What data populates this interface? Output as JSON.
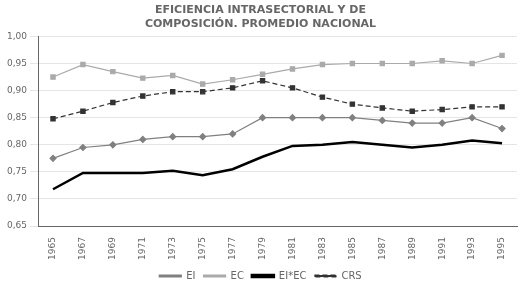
{
  "chart_data": {
    "type": "line",
    "title": "EFICIENCIA INTRASECTORIAL Y DE\nCOMPOSICIÓN. PROMEDIO NACIONAL",
    "x": [
      1965,
      1967,
      1969,
      1971,
      1973,
      1975,
      1977,
      1979,
      1981,
      1983,
      1985,
      1987,
      1989,
      1991,
      1993,
      1995
    ],
    "series": [
      {
        "name": "EI",
        "color": "#808080",
        "marker": "diamond",
        "line_style": "solid",
        "values": [
          0.775,
          0.795,
          0.8,
          0.81,
          0.815,
          0.815,
          0.82,
          0.85,
          0.85,
          0.85,
          0.85,
          0.845,
          0.84,
          0.84,
          0.85,
          0.83
        ]
      },
      {
        "name": "EC",
        "color": "#aaaaaa",
        "marker": "square",
        "line_style": "solid",
        "values": [
          0.925,
          0.948,
          0.935,
          0.923,
          0.928,
          0.912,
          0.92,
          0.93,
          0.94,
          0.948,
          0.95,
          0.95,
          0.95,
          0.955,
          0.95,
          0.965
        ]
      },
      {
        "name": "EI*EC",
        "color": "#000000",
        "marker": "none",
        "line_style": "solid",
        "values": [
          0.718,
          0.748,
          0.748,
          0.748,
          0.752,
          0.744,
          0.755,
          0.778,
          0.798,
          0.8,
          0.805,
          0.8,
          0.795,
          0.8,
          0.808,
          0.803
        ]
      },
      {
        "name": "CRS",
        "color": "#333333",
        "marker": "square",
        "line_style": "dashed",
        "values": [
          0.848,
          0.862,
          0.878,
          0.89,
          0.898,
          0.898,
          0.905,
          0.918,
          0.905,
          0.888,
          0.875,
          0.868,
          0.862,
          0.865,
          0.87,
          0.87
        ]
      }
    ],
    "xlim": [
      1964,
      1996
    ],
    "xticks": [
      1965,
      1967,
      1969,
      1971,
      1973,
      1975,
      1977,
      1979,
      1981,
      1983,
      1985,
      1987,
      1989,
      1991,
      1993,
      1995
    ],
    "ylim": [
      0.65,
      1.0
    ],
    "yticks": [
      {
        "value": 0.65,
        "label": "0,65"
      },
      {
        "value": 0.7,
        "label": "0,70"
      },
      {
        "value": 0.75,
        "label": "0,75"
      },
      {
        "value": 0.8,
        "label": "0,80"
      },
      {
        "value": 0.85,
        "label": "0,85"
      },
      {
        "value": 0.9,
        "label": "0,90"
      },
      {
        "value": 0.95,
        "label": "0,95"
      },
      {
        "value": 1.0,
        "label": "1,00"
      }
    ],
    "grid": "y",
    "legend": "bottom"
  }
}
